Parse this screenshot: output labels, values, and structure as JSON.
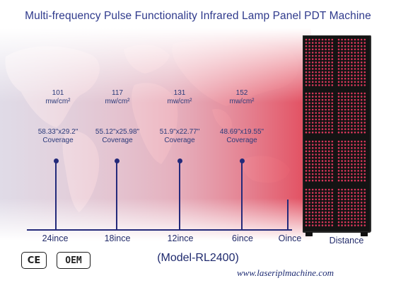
{
  "title": "Multi-frequency Pulse Functionality Infrared Lamp Panel PDT Machine",
  "measurements": [
    {
      "irradiance": "101",
      "unit": "mw/cm²",
      "size": "58.33\"x29.2\"",
      "coverage": "Coverage",
      "distance": "24ince"
    },
    {
      "irradiance": "117",
      "unit": "mw/cm²",
      "size": "55.12\"x25.98\"",
      "coverage": "Coverage",
      "distance": "18ince"
    },
    {
      "irradiance": "131",
      "unit": "mw/cm²",
      "size": "51.9\"x22.77\"",
      "coverage": "Coverage",
      "distance": "12ince"
    },
    {
      "irradiance": "152",
      "unit": "mw/cm²",
      "size": "48.69\"x19.55\"",
      "coverage": "Coverage",
      "distance": "6ince"
    }
  ],
  "zero_label": "Oince",
  "distance_label": "Distance",
  "model": "(Model-RL2400)",
  "website": "www.laseriplmachine.com",
  "badges": {
    "ce": "CE",
    "oem": "OEM"
  },
  "colors": {
    "title": "#2f3a8c",
    "scale": "#242a7a",
    "glow": "#e86a7a",
    "led": "#d9365a"
  }
}
